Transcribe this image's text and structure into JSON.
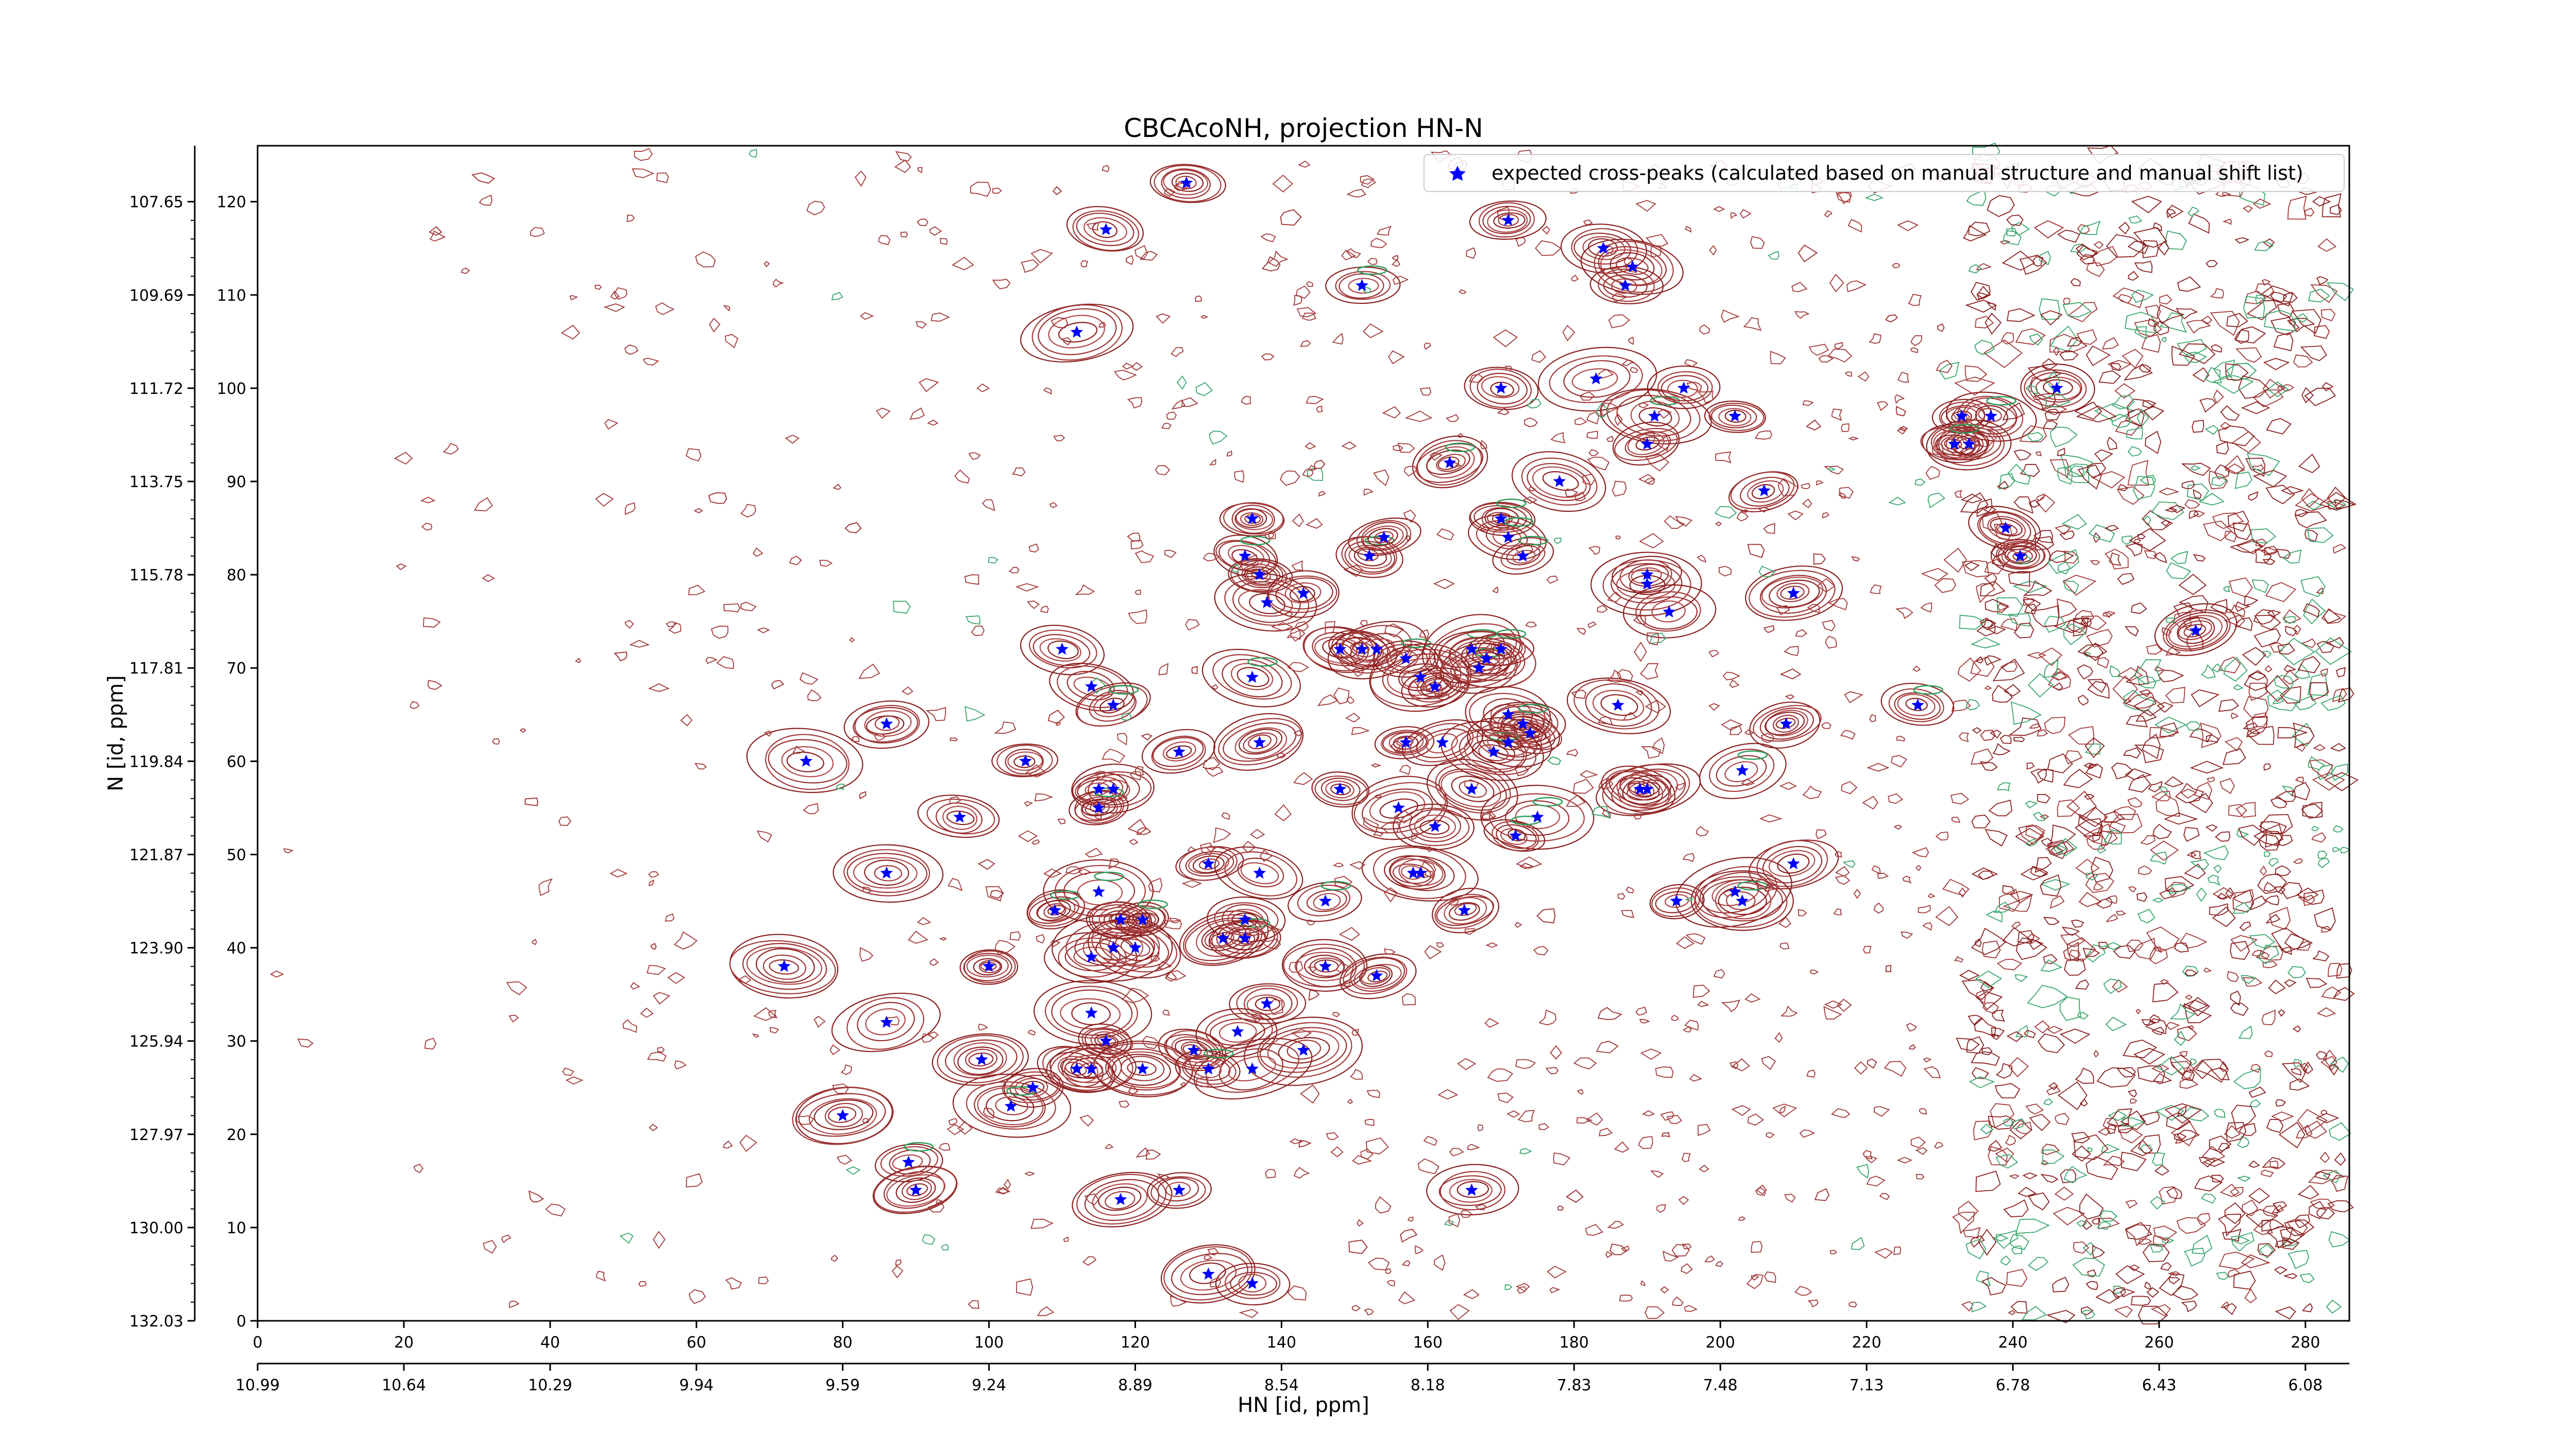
{
  "chart_data": {
    "type": "scatter",
    "title": "CBCAcoNH, projection HN-N",
    "xlabel": "HN [id, ppm]",
    "ylabel": "N [id, ppm]",
    "legend": {
      "position": "top-right",
      "entries": [
        "expected cross-peaks (calculated based on manual structure and manual shift list)"
      ]
    },
    "grid": false,
    "axes": {
      "x_index": {
        "range": [
          0,
          286
        ],
        "ticks": [
          "0",
          "20",
          "40",
          "60",
          "80",
          "100",
          "120",
          "140",
          "160",
          "180",
          "200",
          "220",
          "240",
          "260",
          "280"
        ]
      },
      "x_ppm": {
        "ticks": [
          "10.99",
          "10.64",
          "10.29",
          "9.94",
          "9.59",
          "9.24",
          "8.89",
          "8.54",
          "8.18",
          "7.83",
          "7.48",
          "7.13",
          "6.78",
          "6.43",
          "6.08"
        ]
      },
      "y_index": {
        "range": [
          0,
          126
        ],
        "ticks": [
          "0",
          "10",
          "20",
          "30",
          "40",
          "50",
          "60",
          "70",
          "80",
          "90",
          "100",
          "110",
          "120"
        ]
      },
      "y_ppm": {
        "ticks": [
          "132.03",
          "130.00",
          "127.97",
          "125.94",
          "123.90",
          "121.87",
          "119.84",
          "117.81",
          "115.78",
          "113.75",
          "111.72",
          "109.69",
          "107.65"
        ]
      }
    },
    "series": [
      {
        "name": "expected cross-peaks (calculated based on manual structure and manual shift list)",
        "color": "#0000ff",
        "marker": "star",
        "x": [
          127,
          116,
          171,
          112,
          151,
          184,
          188,
          187,
          170,
          183,
          191,
          195,
          202,
          206,
          163,
          190,
          190,
          233,
          234,
          237,
          246,
          178,
          136,
          135,
          137,
          138,
          143,
          152,
          154,
          170,
          171,
          173,
          190,
          193,
          210,
          232,
          239,
          241,
          265,
          110,
          114,
          117,
          136,
          148,
          151,
          153,
          157,
          159,
          161,
          166,
          167,
          168,
          170,
          171,
          173,
          174,
          148,
          186,
          189,
          209,
          227,
          75,
          86,
          105,
          115,
          117,
          115,
          156,
          157,
          162,
          166,
          169,
          171,
          161,
          126,
          137,
          190,
          203,
          210,
          96,
          86,
          130,
          137,
          146,
          158,
          159,
          165,
          175,
          172,
          194,
          202,
          203,
          109,
          114,
          115,
          117,
          118,
          120,
          121,
          132,
          135,
          135,
          72,
          100,
          138,
          153,
          146,
          114,
          116,
          114,
          128,
          134,
          143,
          99,
          106,
          112,
          121,
          136,
          86,
          130,
          103,
          80,
          89,
          90,
          118,
          126,
          166,
          130,
          136
        ],
        "y": [
          122,
          117,
          118,
          106,
          111,
          115,
          113,
          111,
          100,
          101,
          97,
          100,
          97,
          89,
          92,
          94,
          80,
          97,
          94,
          97,
          100,
          90,
          86,
          82,
          80,
          77,
          78,
          82,
          84,
          86,
          84,
          82,
          79,
          76,
          78,
          94,
          85,
          82,
          74,
          72,
          68,
          66,
          69,
          72,
          72,
          72,
          71,
          69,
          68,
          72,
          70,
          71,
          72,
          65,
          64,
          63,
          57,
          66,
          57,
          64,
          66,
          60,
          64,
          60,
          57,
          57,
          55,
          55,
          62,
          62,
          57,
          61,
          62,
          53,
          61,
          62,
          57,
          59,
          49,
          54,
          48,
          49,
          48,
          45,
          48,
          48,
          44,
          54,
          52,
          45,
          46,
          45,
          44,
          39,
          46,
          40,
          43,
          40,
          43,
          41,
          41,
          43,
          38,
          38,
          34,
          37,
          38,
          33,
          30,
          27,
          29,
          31,
          29,
          28,
          25,
          27,
          27,
          27,
          32,
          27,
          23,
          22,
          17,
          14,
          13,
          14,
          14,
          5,
          4
        ]
      }
    ]
  }
}
